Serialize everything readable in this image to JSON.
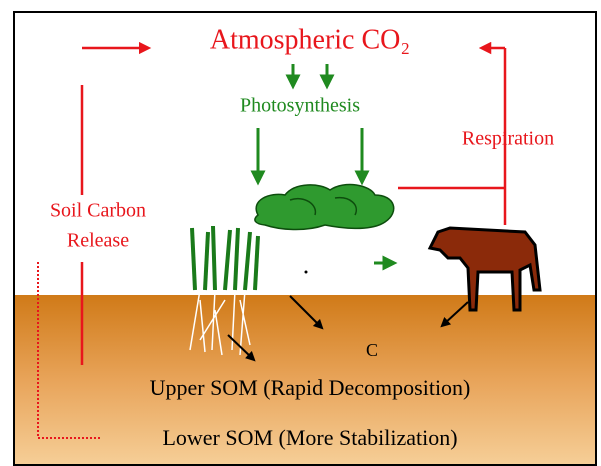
{
  "title": "Atmospheric CO₂",
  "processes": {
    "photosynthesis": "Photosynthesis",
    "respiration": "Respiration",
    "soil_release": [
      "Soil Carbon",
      "Release"
    ]
  },
  "soil": {
    "carbon": "C",
    "upper": "Upper SOM (Rapid Decomposition)",
    "lower": "Lower SOM (More Stabilization)"
  }
}
